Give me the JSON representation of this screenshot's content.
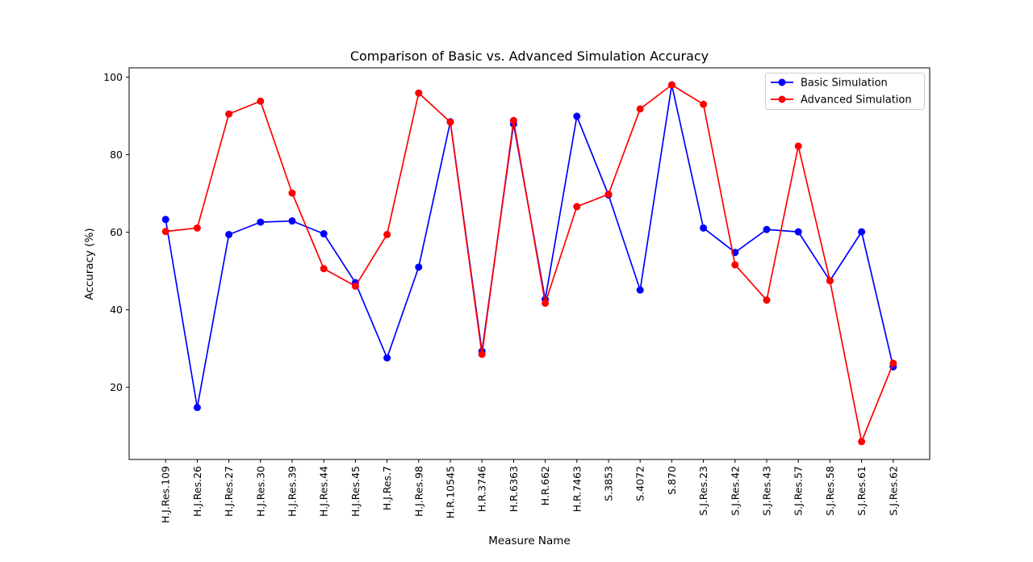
{
  "chart_data": {
    "type": "line",
    "title": "Comparison of Basic vs. Advanced Simulation Accuracy",
    "xlabel": "Measure Name",
    "ylabel": "Accuracy (%)",
    "categories": [
      "H.J.Res.109",
      "H.J.Res.26",
      "H.J.Res.27",
      "H.J.Res.30",
      "H.J.Res.39",
      "H.J.Res.44",
      "H.J.Res.45",
      "H.J.Res.7",
      "H.J.Res.98",
      "H.R.10545",
      "H.R.3746",
      "H.R.6363",
      "H.R.662",
      "H.R.7463",
      "S.3853",
      "S.4072",
      "S.870",
      "S.J.Res.23",
      "S.J.Res.42",
      "S.J.Res.43",
      "S.J.Res.57",
      "S.J.Res.58",
      "S.J.Res.61",
      "S.J.Res.62"
    ],
    "ylim": [
      1.4,
      102.4
    ],
    "yticks": [
      20,
      40,
      60,
      80,
      100
    ],
    "legend_position": "top-right",
    "grid": false,
    "series": [
      {
        "name": "Basic Simulation",
        "color": "#0000ff",
        "values": [
          63.3,
          14.8,
          59.4,
          62.6,
          62.9,
          59.6,
          47.0,
          27.6,
          51.0,
          88.5,
          29.3,
          87.9,
          42.7,
          89.9,
          69.6,
          45.1,
          98.0,
          61.1,
          54.8,
          60.7,
          60.1,
          47.5,
          60.1,
          25.3
        ]
      },
      {
        "name": "Advanced Simulation",
        "color": "#ff0000",
        "values": [
          60.2,
          61.1,
          90.5,
          93.8,
          70.1,
          50.6,
          46.1,
          59.4,
          95.9,
          88.4,
          28.5,
          88.8,
          41.7,
          66.6,
          69.8,
          91.8,
          98.0,
          93.0,
          51.6,
          42.5,
          82.2,
          47.5,
          6.0,
          26.2
        ]
      }
    ]
  }
}
